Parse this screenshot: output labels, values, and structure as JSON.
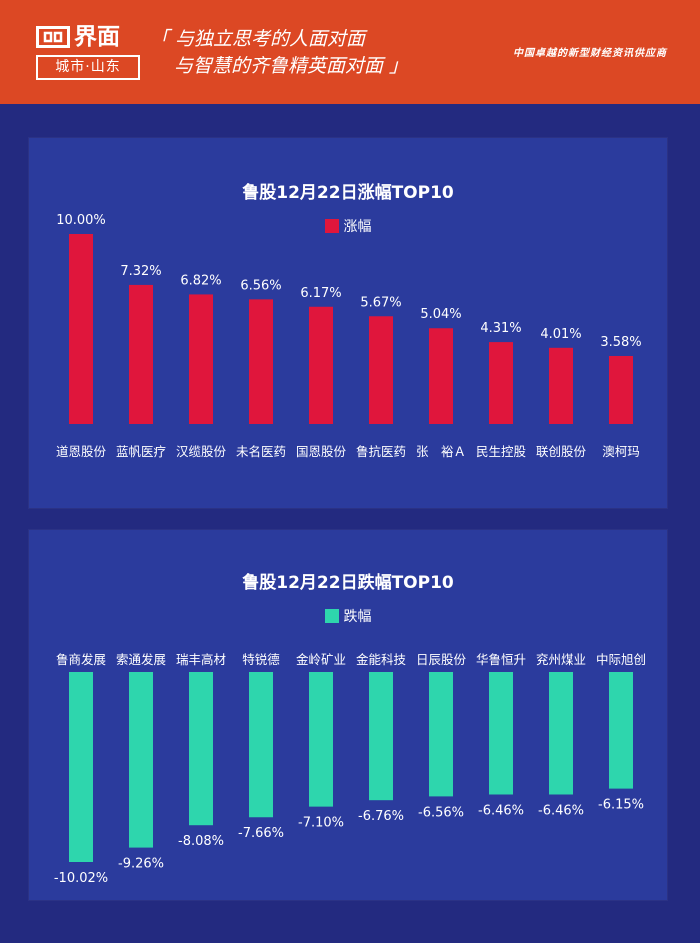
{
  "header": {
    "logo_name": "界面",
    "logo_sub": "城市·山东",
    "slogan_line1": "「 与独立思考的人面对面",
    "slogan_line2": "与智慧的齐鲁精英面对面 」",
    "tagline": "中国卓越的新型财经资讯供应商"
  },
  "colors": {
    "header_bg": "#dc4824",
    "page_bg": "#232a80",
    "panel_bg": "#2b3b9d",
    "gain": "#e0163c",
    "loss": "#2ed6ad"
  },
  "chart_data": [
    {
      "type": "bar",
      "title": "鲁股12月22日涨幅TOP10",
      "series": [
        {
          "name": "涨幅",
          "values": [
            10.0,
            7.32,
            6.82,
            6.56,
            6.17,
            5.67,
            5.04,
            4.31,
            4.01,
            3.58
          ]
        }
      ],
      "categories": [
        "道恩股份",
        "蓝帆医疗",
        "汉缆股份",
        "未名医药",
        "国恩股份",
        "鲁抗医药",
        "张　裕Ａ",
        "民生控股",
        "联创股份",
        "澳柯玛"
      ],
      "value_labels": [
        "10.00%",
        "7.32%",
        "6.82%",
        "6.56%",
        "6.17%",
        "5.67%",
        "5.04%",
        "4.31%",
        "4.01%",
        "3.58%"
      ],
      "ylim": [
        0,
        10
      ]
    },
    {
      "type": "bar",
      "title": "鲁股12月22日跌幅TOP10",
      "series": [
        {
          "name": "跌幅",
          "values": [
            -10.02,
            -9.26,
            -8.08,
            -7.66,
            -7.1,
            -6.76,
            -6.56,
            -6.46,
            -6.46,
            -6.15
          ]
        }
      ],
      "categories": [
        "鲁商发展",
        "索通发展",
        "瑞丰高材",
        "特锐德",
        "金岭矿业",
        "金能科技",
        "日辰股份",
        "华鲁恒升",
        "兖州煤业",
        "中际旭创"
      ],
      "value_labels": [
        "-10.02%",
        "-9.26%",
        "-8.08%",
        "-7.66%",
        "-7.10%",
        "-6.76%",
        "-6.56%",
        "-6.46%",
        "-6.46%",
        "-6.15%"
      ],
      "ylim": [
        -10.02,
        0
      ]
    }
  ]
}
